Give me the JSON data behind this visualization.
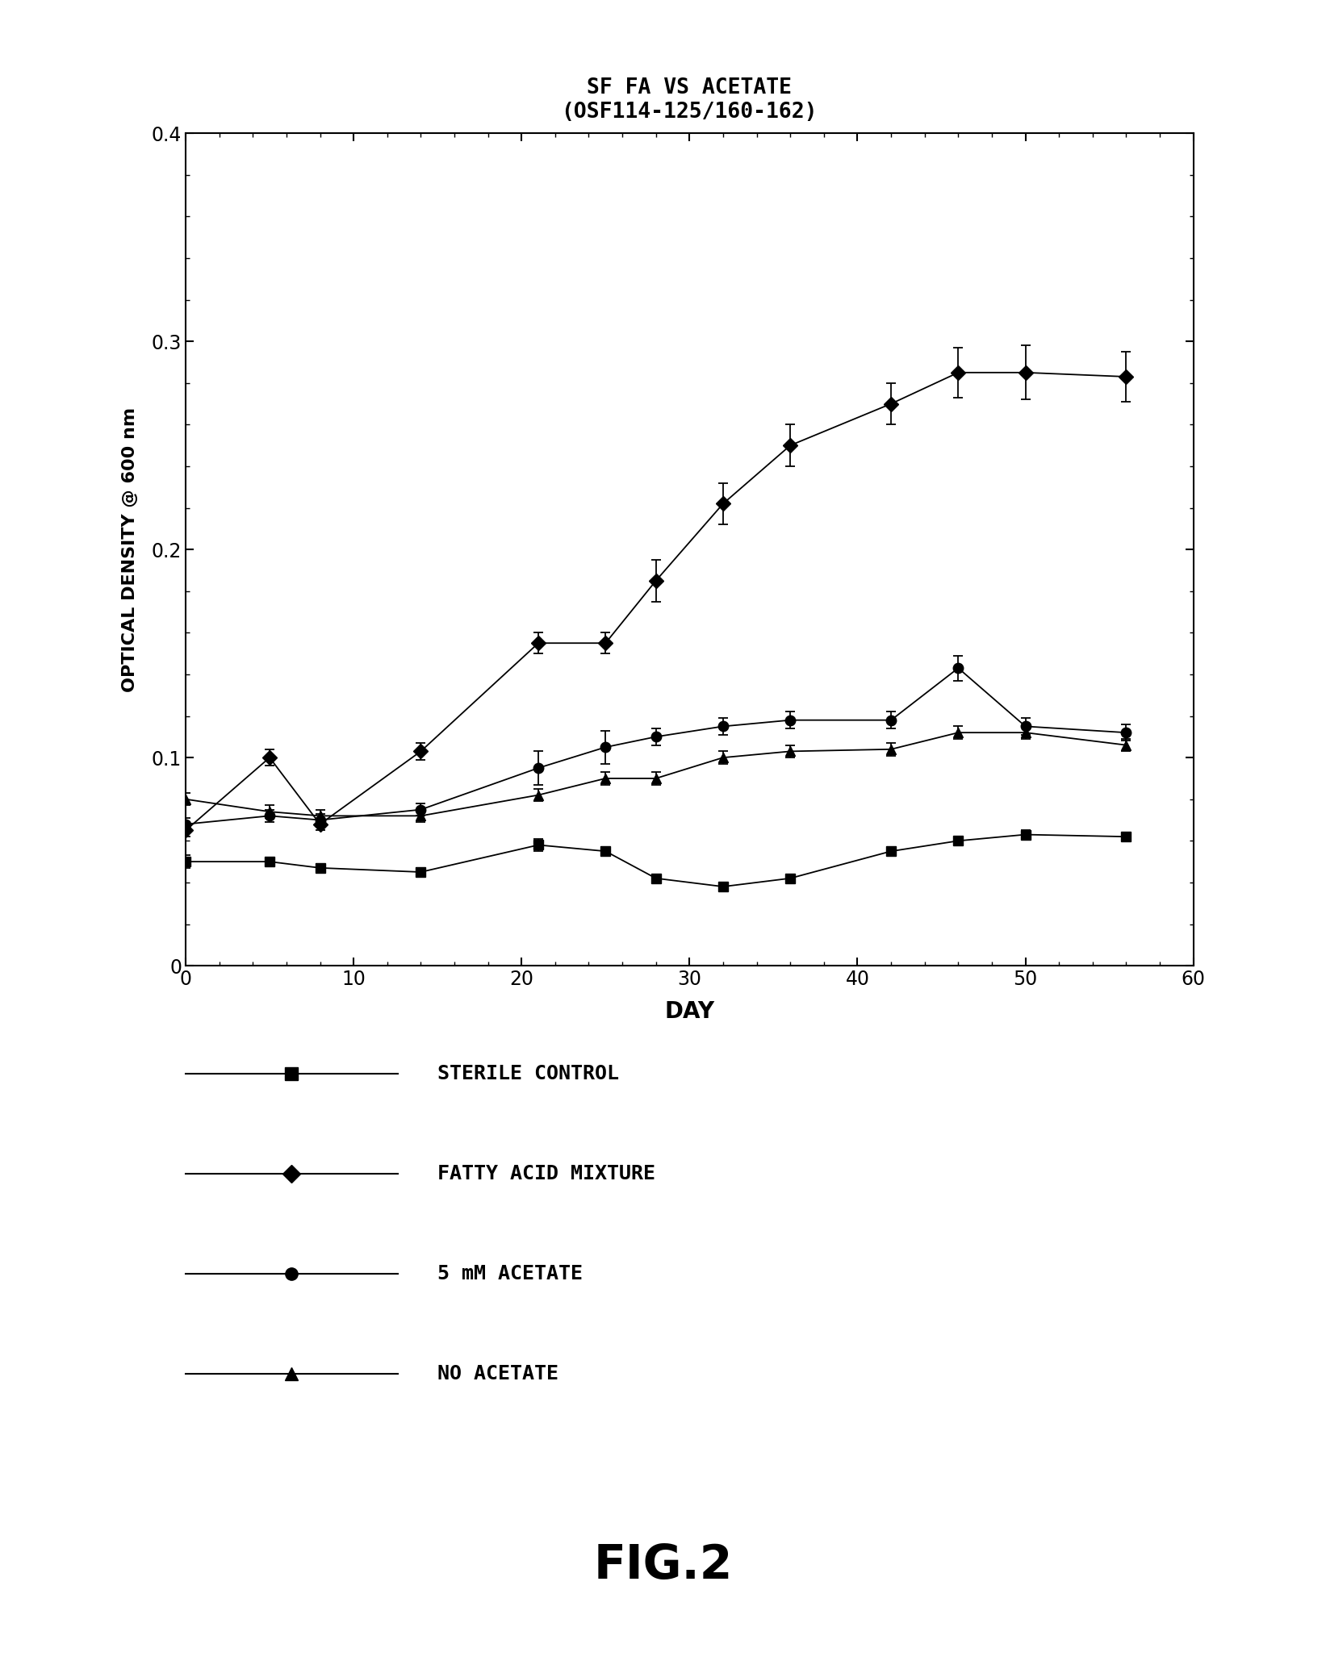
{
  "title_line1": "SF FA VS ACETATE",
  "title_line2": "(OSF114-125/160-162)",
  "xlabel": "DAY",
  "ylabel": "OPTICAL DENSITY @ 600 nm",
  "xlim": [
    0,
    60
  ],
  "ylim": [
    0,
    0.4
  ],
  "xticks": [
    0,
    10,
    20,
    30,
    40,
    50,
    60
  ],
  "yticks": [
    0,
    0.1,
    0.2,
    0.3,
    0.4
  ],
  "fig_caption": "FIG.2",
  "series": {
    "sterile_control": {
      "label": "STERILE CONTROL",
      "x": [
        0,
        5,
        8,
        14,
        21,
        25,
        28,
        32,
        36,
        42,
        46,
        50,
        56
      ],
      "y": [
        0.05,
        0.05,
        0.047,
        0.045,
        0.058,
        0.055,
        0.042,
        0.038,
        0.042,
        0.055,
        0.06,
        0.063,
        0.062
      ],
      "yerr": [
        0.003,
        0.002,
        0.002,
        0.002,
        0.003,
        0.002,
        0.002,
        0.002,
        0.002,
        0.002,
        0.002,
        0.002,
        0.002
      ],
      "marker": "s",
      "linestyle": "-"
    },
    "fatty_acid": {
      "label": "FATTY ACID MIXTURE",
      "x": [
        0,
        5,
        8,
        14,
        21,
        25,
        28,
        32,
        36,
        42,
        46,
        50,
        56
      ],
      "y": [
        0.065,
        0.1,
        0.068,
        0.103,
        0.155,
        0.155,
        0.185,
        0.222,
        0.25,
        0.27,
        0.285,
        0.285,
        0.283
      ],
      "yerr": [
        0.003,
        0.004,
        0.003,
        0.004,
        0.005,
        0.005,
        0.01,
        0.01,
        0.01,
        0.01,
        0.012,
        0.013,
        0.012
      ],
      "marker": "D",
      "linestyle": "-"
    },
    "acetate_5mm": {
      "label": "5 mM ACETATE",
      "x": [
        0,
        5,
        8,
        14,
        21,
        25,
        28,
        32,
        36,
        42,
        46,
        50,
        56
      ],
      "y": [
        0.068,
        0.072,
        0.07,
        0.075,
        0.095,
        0.105,
        0.11,
        0.115,
        0.118,
        0.118,
        0.143,
        0.115,
        0.112
      ],
      "yerr": [
        0.003,
        0.003,
        0.003,
        0.003,
        0.008,
        0.008,
        0.004,
        0.004,
        0.004,
        0.004,
        0.006,
        0.004,
        0.004
      ],
      "marker": "o",
      "linestyle": "-"
    },
    "no_acetate": {
      "label": "NO ACETATE",
      "x": [
        0,
        5,
        8,
        14,
        21,
        25,
        28,
        32,
        36,
        42,
        46,
        50,
        56
      ],
      "y": [
        0.08,
        0.074,
        0.072,
        0.072,
        0.082,
        0.09,
        0.09,
        0.1,
        0.103,
        0.104,
        0.112,
        0.112,
        0.106
      ],
      "yerr": [
        0.003,
        0.003,
        0.003,
        0.003,
        0.003,
        0.003,
        0.003,
        0.003,
        0.003,
        0.003,
        0.003,
        0.003,
        0.003
      ],
      "marker": "^",
      "linestyle": "-"
    }
  },
  "background_color": "#ffffff",
  "font_color": "#000000",
  "legend_items": [
    {
      "marker": "s",
      "label": "STERILE CONTROL"
    },
    {
      "marker": "D",
      "label": "FATTY ACID MIXTURE"
    },
    {
      "marker": "o",
      "label": "5 mM ACETATE"
    },
    {
      "marker": "^",
      "label": "NO ACETATE"
    }
  ]
}
